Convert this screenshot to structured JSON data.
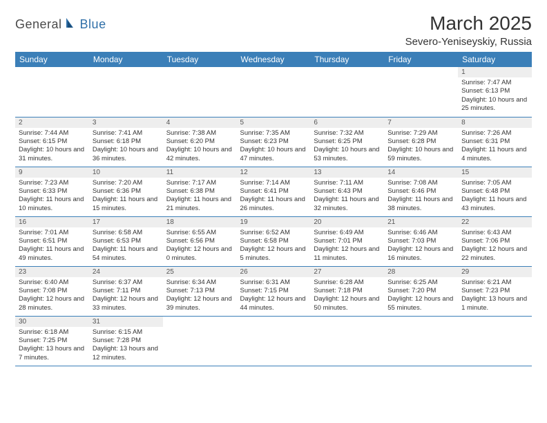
{
  "logo": {
    "text1": "General",
    "text2": "Blue"
  },
  "title": "March 2025",
  "location": "Severo-Yeniseyskiy, Russia",
  "colors": {
    "header_bg": "#3b7fb8",
    "header_fg": "#ffffff",
    "daynum_bg": "#eeeeee",
    "border": "#3b7fb8",
    "logo_blue": "#2f6fa8"
  },
  "weekdays": [
    "Sunday",
    "Monday",
    "Tuesday",
    "Wednesday",
    "Thursday",
    "Friday",
    "Saturday"
  ],
  "weeks": [
    [
      null,
      null,
      null,
      null,
      null,
      null,
      {
        "n": "1",
        "sr": "Sunrise: 7:47 AM",
        "ss": "Sunset: 6:13 PM",
        "dl": "Daylight: 10 hours and 25 minutes."
      }
    ],
    [
      {
        "n": "2",
        "sr": "Sunrise: 7:44 AM",
        "ss": "Sunset: 6:15 PM",
        "dl": "Daylight: 10 hours and 31 minutes."
      },
      {
        "n": "3",
        "sr": "Sunrise: 7:41 AM",
        "ss": "Sunset: 6:18 PM",
        "dl": "Daylight: 10 hours and 36 minutes."
      },
      {
        "n": "4",
        "sr": "Sunrise: 7:38 AM",
        "ss": "Sunset: 6:20 PM",
        "dl": "Daylight: 10 hours and 42 minutes."
      },
      {
        "n": "5",
        "sr": "Sunrise: 7:35 AM",
        "ss": "Sunset: 6:23 PM",
        "dl": "Daylight: 10 hours and 47 minutes."
      },
      {
        "n": "6",
        "sr": "Sunrise: 7:32 AM",
        "ss": "Sunset: 6:25 PM",
        "dl": "Daylight: 10 hours and 53 minutes."
      },
      {
        "n": "7",
        "sr": "Sunrise: 7:29 AM",
        "ss": "Sunset: 6:28 PM",
        "dl": "Daylight: 10 hours and 59 minutes."
      },
      {
        "n": "8",
        "sr": "Sunrise: 7:26 AM",
        "ss": "Sunset: 6:31 PM",
        "dl": "Daylight: 11 hours and 4 minutes."
      }
    ],
    [
      {
        "n": "9",
        "sr": "Sunrise: 7:23 AM",
        "ss": "Sunset: 6:33 PM",
        "dl": "Daylight: 11 hours and 10 minutes."
      },
      {
        "n": "10",
        "sr": "Sunrise: 7:20 AM",
        "ss": "Sunset: 6:36 PM",
        "dl": "Daylight: 11 hours and 15 minutes."
      },
      {
        "n": "11",
        "sr": "Sunrise: 7:17 AM",
        "ss": "Sunset: 6:38 PM",
        "dl": "Daylight: 11 hours and 21 minutes."
      },
      {
        "n": "12",
        "sr": "Sunrise: 7:14 AM",
        "ss": "Sunset: 6:41 PM",
        "dl": "Daylight: 11 hours and 26 minutes."
      },
      {
        "n": "13",
        "sr": "Sunrise: 7:11 AM",
        "ss": "Sunset: 6:43 PM",
        "dl": "Daylight: 11 hours and 32 minutes."
      },
      {
        "n": "14",
        "sr": "Sunrise: 7:08 AM",
        "ss": "Sunset: 6:46 PM",
        "dl": "Daylight: 11 hours and 38 minutes."
      },
      {
        "n": "15",
        "sr": "Sunrise: 7:05 AM",
        "ss": "Sunset: 6:48 PM",
        "dl": "Daylight: 11 hours and 43 minutes."
      }
    ],
    [
      {
        "n": "16",
        "sr": "Sunrise: 7:01 AM",
        "ss": "Sunset: 6:51 PM",
        "dl": "Daylight: 11 hours and 49 minutes."
      },
      {
        "n": "17",
        "sr": "Sunrise: 6:58 AM",
        "ss": "Sunset: 6:53 PM",
        "dl": "Daylight: 11 hours and 54 minutes."
      },
      {
        "n": "18",
        "sr": "Sunrise: 6:55 AM",
        "ss": "Sunset: 6:56 PM",
        "dl": "Daylight: 12 hours and 0 minutes."
      },
      {
        "n": "19",
        "sr": "Sunrise: 6:52 AM",
        "ss": "Sunset: 6:58 PM",
        "dl": "Daylight: 12 hours and 5 minutes."
      },
      {
        "n": "20",
        "sr": "Sunrise: 6:49 AM",
        "ss": "Sunset: 7:01 PM",
        "dl": "Daylight: 12 hours and 11 minutes."
      },
      {
        "n": "21",
        "sr": "Sunrise: 6:46 AM",
        "ss": "Sunset: 7:03 PM",
        "dl": "Daylight: 12 hours and 16 minutes."
      },
      {
        "n": "22",
        "sr": "Sunrise: 6:43 AM",
        "ss": "Sunset: 7:06 PM",
        "dl": "Daylight: 12 hours and 22 minutes."
      }
    ],
    [
      {
        "n": "23",
        "sr": "Sunrise: 6:40 AM",
        "ss": "Sunset: 7:08 PM",
        "dl": "Daylight: 12 hours and 28 minutes."
      },
      {
        "n": "24",
        "sr": "Sunrise: 6:37 AM",
        "ss": "Sunset: 7:11 PM",
        "dl": "Daylight: 12 hours and 33 minutes."
      },
      {
        "n": "25",
        "sr": "Sunrise: 6:34 AM",
        "ss": "Sunset: 7:13 PM",
        "dl": "Daylight: 12 hours and 39 minutes."
      },
      {
        "n": "26",
        "sr": "Sunrise: 6:31 AM",
        "ss": "Sunset: 7:15 PM",
        "dl": "Daylight: 12 hours and 44 minutes."
      },
      {
        "n": "27",
        "sr": "Sunrise: 6:28 AM",
        "ss": "Sunset: 7:18 PM",
        "dl": "Daylight: 12 hours and 50 minutes."
      },
      {
        "n": "28",
        "sr": "Sunrise: 6:25 AM",
        "ss": "Sunset: 7:20 PM",
        "dl": "Daylight: 12 hours and 55 minutes."
      },
      {
        "n": "29",
        "sr": "Sunrise: 6:21 AM",
        "ss": "Sunset: 7:23 PM",
        "dl": "Daylight: 13 hours and 1 minute."
      }
    ],
    [
      {
        "n": "30",
        "sr": "Sunrise: 6:18 AM",
        "ss": "Sunset: 7:25 PM",
        "dl": "Daylight: 13 hours and 7 minutes."
      },
      {
        "n": "31",
        "sr": "Sunrise: 6:15 AM",
        "ss": "Sunset: 7:28 PM",
        "dl": "Daylight: 13 hours and 12 minutes."
      },
      null,
      null,
      null,
      null,
      null
    ]
  ]
}
